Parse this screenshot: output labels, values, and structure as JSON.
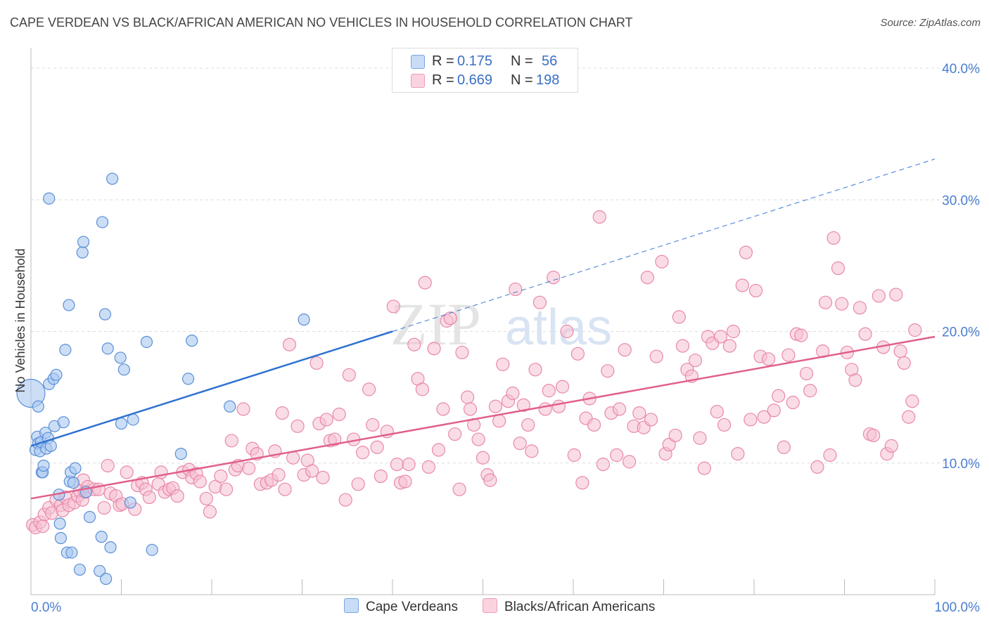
{
  "title": "CAPE VERDEAN VS BLACK/AFRICAN AMERICAN NO VEHICLES IN HOUSEHOLD CORRELATION CHART",
  "source": "Source: ZipAtlas.com",
  "watermark": "ZIPatlas",
  "legend": {
    "r_label": "R =",
    "n_label": "N =",
    "rows": [
      {
        "r": "0.175",
        "n": "56",
        "color": "#aac8f0"
      },
      {
        "r": "0.669",
        "n": "198",
        "color": "#f6b8cc"
      }
    ]
  },
  "bottom_legend": [
    "Cape Verdeans",
    "Blacks/African Americans"
  ],
  "colors": {
    "blue_fill": "#aac8f0",
    "blue_stroke": "#5b8fd6",
    "blue_line": "#2f72d2",
    "pink_fill": "#f6c0d2",
    "pink_stroke": "#e889a8",
    "pink_line": "#e0608a",
    "axis_text": "#4a7fd0"
  },
  "chart_data": {
    "type": "scatter",
    "xlabel": "",
    "ylabel": "No Vehicles in Household",
    "xlim": [
      0,
      100
    ],
    "ylim": [
      0,
      40
    ],
    "x_tick_labels": [
      "0.0%",
      "100.0%"
    ],
    "y_tick_labels": [
      "10.0%",
      "20.0%",
      "30.0%",
      "40.0%"
    ],
    "y_ticks": [
      10,
      20,
      30,
      40
    ],
    "grid": true,
    "series": [
      {
        "name": "Cape Verdeans",
        "r": 0.175,
        "n": 56,
        "trend": {
          "x0": 0,
          "y0": 11.3,
          "x1": 40,
          "y1": 20.0,
          "dash_to_x": 100,
          "dash_to_y": 33.1
        },
        "points": [
          [
            0.0,
            15.3
          ],
          [
            0.5,
            11.0
          ],
          [
            0.7,
            12.0
          ],
          [
            0.8,
            11.5
          ],
          [
            0.8,
            14.3
          ],
          [
            1.0,
            10.9
          ],
          [
            1.1,
            11.6
          ],
          [
            1.2,
            9.3
          ],
          [
            1.3,
            9.3
          ],
          [
            1.4,
            9.8
          ],
          [
            1.6,
            12.3
          ],
          [
            1.7,
            11.1
          ],
          [
            1.9,
            11.9
          ],
          [
            2.0,
            16.0
          ],
          [
            2.0,
            30.1
          ],
          [
            2.2,
            11.3
          ],
          [
            2.5,
            16.4
          ],
          [
            2.6,
            12.8
          ],
          [
            2.8,
            16.7
          ],
          [
            3.1,
            7.6
          ],
          [
            3.2,
            5.4
          ],
          [
            3.3,
            4.3
          ],
          [
            3.6,
            13.1
          ],
          [
            3.8,
            18.6
          ],
          [
            4.0,
            3.2
          ],
          [
            4.2,
            22.0
          ],
          [
            4.3,
            8.6
          ],
          [
            4.4,
            9.3
          ],
          [
            4.5,
            3.2
          ],
          [
            4.7,
            8.5
          ],
          [
            4.9,
            9.6
          ],
          [
            5.4,
            1.9
          ],
          [
            5.7,
            26.0
          ],
          [
            5.8,
            26.8
          ],
          [
            6.1,
            7.8
          ],
          [
            6.5,
            5.9
          ],
          [
            7.6,
            1.8
          ],
          [
            7.8,
            4.4
          ],
          [
            7.9,
            28.3
          ],
          [
            8.2,
            21.3
          ],
          [
            8.3,
            1.2
          ],
          [
            8.5,
            18.7
          ],
          [
            8.8,
            3.6
          ],
          [
            9.0,
            31.6
          ],
          [
            9.9,
            18.0
          ],
          [
            10.0,
            13.0
          ],
          [
            10.3,
            17.1
          ],
          [
            11.0,
            7.0
          ],
          [
            11.3,
            13.3
          ],
          [
            12.8,
            19.2
          ],
          [
            13.4,
            3.4
          ],
          [
            16.6,
            10.7
          ],
          [
            17.4,
            16.4
          ],
          [
            17.8,
            19.3
          ],
          [
            22.0,
            14.3
          ],
          [
            30.2,
            20.9
          ]
        ]
      },
      {
        "name": "Blacks/African Americans",
        "r": 0.669,
        "n": 198,
        "trend": {
          "x0": 0,
          "y0": 7.3,
          "x1": 100,
          "y1": 19.6
        },
        "points": [
          [
            0.2,
            5.3
          ],
          [
            0.5,
            5.1
          ],
          [
            1.0,
            5.5
          ],
          [
            1.3,
            5.2
          ],
          [
            1.5,
            6.1
          ],
          [
            2.0,
            6.6
          ],
          [
            2.3,
            6.2
          ],
          [
            2.8,
            7.2
          ],
          [
            3.3,
            6.8
          ],
          [
            3.5,
            6.4
          ],
          [
            3.8,
            7.4
          ],
          [
            4.2,
            6.8
          ],
          [
            4.8,
            7.0
          ],
          [
            5.2,
            7.5
          ],
          [
            5.4,
            7.9
          ],
          [
            5.7,
            7.2
          ],
          [
            5.8,
            8.7
          ],
          [
            6.0,
            7.8
          ],
          [
            6.3,
            8.2
          ],
          [
            7.0,
            8.0
          ],
          [
            7.5,
            8.0
          ],
          [
            8.1,
            6.6
          ],
          [
            8.5,
            9.8
          ],
          [
            8.8,
            7.7
          ],
          [
            9.4,
            7.5
          ],
          [
            9.8,
            6.8
          ],
          [
            10.1,
            6.9
          ],
          [
            10.6,
            9.3
          ],
          [
            11.5,
            6.5
          ],
          [
            11.8,
            8.3
          ],
          [
            12.3,
            8.5
          ],
          [
            12.7,
            8.0
          ],
          [
            13.1,
            7.4
          ],
          [
            14.1,
            8.4
          ],
          [
            14.4,
            9.3
          ],
          [
            14.8,
            7.8
          ],
          [
            15.3,
            8.0
          ],
          [
            15.7,
            8.1
          ],
          [
            16.2,
            7.5
          ],
          [
            16.8,
            9.3
          ],
          [
            17.5,
            9.5
          ],
          [
            17.8,
            8.9
          ],
          [
            18.3,
            9.2
          ],
          [
            18.7,
            8.6
          ],
          [
            19.4,
            7.3
          ],
          [
            19.8,
            6.3
          ],
          [
            20.4,
            8.2
          ],
          [
            21.0,
            9.0
          ],
          [
            21.6,
            8.0
          ],
          [
            22.2,
            11.7
          ],
          [
            22.6,
            9.5
          ],
          [
            22.9,
            9.8
          ],
          [
            23.5,
            14.1
          ],
          [
            24.1,
            9.6
          ],
          [
            24.5,
            11.1
          ],
          [
            25.0,
            10.7
          ],
          [
            25.4,
            8.4
          ],
          [
            26.1,
            8.5
          ],
          [
            26.6,
            8.7
          ],
          [
            27.0,
            10.9
          ],
          [
            27.4,
            9.1
          ],
          [
            27.8,
            13.8
          ],
          [
            28.1,
            8.0
          ],
          [
            28.6,
            19.0
          ],
          [
            29.0,
            10.4
          ],
          [
            29.5,
            12.8
          ],
          [
            30.2,
            9.1
          ],
          [
            30.6,
            10.2
          ],
          [
            31.1,
            9.4
          ],
          [
            31.6,
            17.6
          ],
          [
            31.9,
            13.0
          ],
          [
            32.3,
            8.9
          ],
          [
            32.7,
            13.3
          ],
          [
            33.1,
            11.7
          ],
          [
            33.6,
            11.8
          ],
          [
            34.1,
            13.7
          ],
          [
            34.8,
            7.2
          ],
          [
            35.2,
            16.7
          ],
          [
            35.7,
            11.8
          ],
          [
            36.2,
            8.4
          ],
          [
            36.7,
            10.8
          ],
          [
            37.4,
            15.6
          ],
          [
            37.8,
            12.9
          ],
          [
            38.3,
            11.2
          ],
          [
            38.7,
            9.0
          ],
          [
            39.4,
            12.4
          ],
          [
            40.1,
            21.9
          ],
          [
            40.5,
            9.9
          ],
          [
            40.9,
            8.5
          ],
          [
            41.4,
            8.6
          ],
          [
            41.8,
            9.9
          ],
          [
            42.4,
            19.0
          ],
          [
            42.8,
            16.4
          ],
          [
            43.3,
            15.6
          ],
          [
            43.6,
            23.7
          ],
          [
            44.0,
            9.7
          ],
          [
            44.6,
            18.7
          ],
          [
            45.1,
            11.0
          ],
          [
            45.6,
            14.1
          ],
          [
            46.0,
            20.8
          ],
          [
            46.4,
            21.0
          ],
          [
            46.9,
            12.2
          ],
          [
            47.4,
            8.0
          ],
          [
            47.7,
            18.4
          ],
          [
            48.3,
            15.0
          ],
          [
            48.6,
            14.1
          ],
          [
            49.0,
            12.9
          ],
          [
            49.5,
            11.8
          ],
          [
            50.0,
            10.4
          ],
          [
            50.5,
            9.1
          ],
          [
            50.8,
            8.7
          ],
          [
            51.4,
            14.3
          ],
          [
            51.8,
            13.2
          ],
          [
            52.2,
            17.5
          ],
          [
            52.8,
            14.7
          ],
          [
            53.3,
            15.3
          ],
          [
            53.6,
            23.2
          ],
          [
            54.1,
            11.5
          ],
          [
            54.5,
            14.4
          ],
          [
            55.0,
            12.9
          ],
          [
            55.4,
            10.9
          ],
          [
            55.8,
            17.1
          ],
          [
            56.3,
            22.2
          ],
          [
            56.9,
            14.1
          ],
          [
            57.3,
            15.5
          ],
          [
            57.8,
            24.1
          ],
          [
            58.4,
            14.3
          ],
          [
            58.8,
            15.8
          ],
          [
            59.3,
            20.0
          ],
          [
            60.1,
            10.6
          ],
          [
            60.5,
            18.3
          ],
          [
            61.0,
            8.5
          ],
          [
            61.4,
            13.4
          ],
          [
            61.8,
            14.9
          ],
          [
            62.3,
            12.9
          ],
          [
            62.9,
            28.7
          ],
          [
            63.3,
            9.9
          ],
          [
            63.8,
            17.0
          ],
          [
            64.2,
            13.8
          ],
          [
            64.8,
            10.6
          ],
          [
            65.1,
            14.1
          ],
          [
            65.7,
            18.6
          ],
          [
            66.2,
            10.1
          ],
          [
            66.7,
            12.8
          ],
          [
            67.3,
            13.8
          ],
          [
            67.8,
            12.7
          ],
          [
            68.2,
            24.1
          ],
          [
            68.6,
            13.3
          ],
          [
            69.2,
            18.1
          ],
          [
            69.8,
            25.3
          ],
          [
            70.2,
            10.7
          ],
          [
            70.6,
            11.4
          ],
          [
            71.3,
            12.1
          ],
          [
            71.7,
            21.1
          ],
          [
            72.1,
            18.9
          ],
          [
            72.6,
            17.1
          ],
          [
            73.1,
            16.6
          ],
          [
            73.5,
            17.8
          ],
          [
            74.0,
            11.9
          ],
          [
            74.5,
            9.6
          ],
          [
            74.9,
            19.6
          ],
          [
            75.4,
            19.1
          ],
          [
            75.9,
            13.9
          ],
          [
            76.3,
            19.6
          ],
          [
            76.7,
            12.9
          ],
          [
            77.3,
            18.9
          ],
          [
            77.7,
            20.0
          ],
          [
            78.2,
            10.7
          ],
          [
            78.7,
            23.5
          ],
          [
            79.1,
            26.0
          ],
          [
            79.6,
            13.3
          ],
          [
            80.2,
            23.1
          ],
          [
            80.7,
            18.1
          ],
          [
            81.1,
            13.5
          ],
          [
            81.6,
            17.9
          ],
          [
            82.2,
            14.0
          ],
          [
            82.7,
            15.1
          ],
          [
            83.3,
            11.2
          ],
          [
            83.8,
            18.2
          ],
          [
            84.3,
            14.6
          ],
          [
            84.7,
            19.8
          ],
          [
            85.2,
            19.7
          ],
          [
            85.8,
            16.8
          ],
          [
            86.2,
            15.5
          ],
          [
            87.0,
            9.7
          ],
          [
            87.6,
            18.5
          ],
          [
            87.9,
            22.2
          ],
          [
            88.4,
            10.6
          ],
          [
            88.8,
            27.1
          ],
          [
            89.3,
            24.8
          ],
          [
            89.7,
            22.1
          ],
          [
            90.3,
            18.4
          ],
          [
            90.8,
            17.1
          ],
          [
            91.2,
            16.3
          ],
          [
            91.7,
            21.8
          ],
          [
            92.3,
            19.8
          ],
          [
            92.8,
            12.2
          ],
          [
            93.2,
            12.1
          ],
          [
            93.8,
            22.7
          ],
          [
            94.3,
            18.8
          ],
          [
            94.7,
            10.7
          ],
          [
            95.2,
            11.3
          ],
          [
            95.7,
            22.8
          ],
          [
            96.2,
            18.5
          ],
          [
            96.6,
            17.6
          ],
          [
            97.1,
            13.5
          ],
          [
            97.5,
            14.7
          ],
          [
            97.8,
            20.1
          ]
        ]
      }
    ]
  }
}
